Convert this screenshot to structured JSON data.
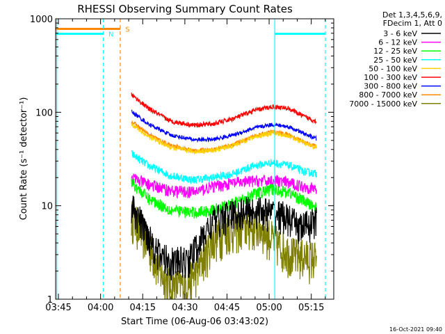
{
  "chart_data": {
    "type": "line",
    "title": "RHESSI Observing Summary Count Rates",
    "xlabel": "Start Time (06-Aug-06 03:43:02)",
    "ylabel": "Count Rate (s⁻¹ detector⁻¹)",
    "timestamp": "16-Oct-2021 09:40",
    "x_range_min": [
      -1,
      98
    ],
    "y_scale": "log",
    "y_range": [
      1,
      1000
    ],
    "x_ticks": [
      {
        "t": 0,
        "label": "03:45"
      },
      {
        "t": 15,
        "label": "04:00"
      },
      {
        "t": 30,
        "label": "04:15"
      },
      {
        "t": 45,
        "label": "04:30"
      },
      {
        "t": 60,
        "label": "04:45"
      },
      {
        "t": 75,
        "label": "05:00"
      },
      {
        "t": 90,
        "label": "05:15"
      }
    ],
    "y_ticks": [
      {
        "v": 1,
        "label": "1"
      },
      {
        "v": 10,
        "label": "10"
      },
      {
        "v": 100,
        "label": "100"
      },
      {
        "v": 1000,
        "label": "1000"
      }
    ],
    "legend_header": [
      "Det 1,3,4,5,6,9,",
      "FDecim 1, Att 0"
    ],
    "series": [
      {
        "name": "3 - 6 keV",
        "color": "#000000",
        "noise": 0.4,
        "points": [
          [
            26,
            10
          ],
          [
            32,
            5
          ],
          [
            36,
            3
          ],
          [
            40,
            2.6
          ],
          [
            46,
            2.6
          ],
          [
            50,
            4
          ],
          [
            55,
            7
          ],
          [
            60,
            8
          ],
          [
            66,
            9
          ],
          [
            72,
            9
          ],
          [
            80,
            8
          ],
          [
            86,
            6
          ],
          [
            92,
            7
          ]
        ]
      },
      {
        "name": "6 - 12 keV",
        "color": "#ff00ff",
        "noise": 0.15,
        "points": [
          [
            26,
            20
          ],
          [
            32,
            17
          ],
          [
            40,
            14.5
          ],
          [
            48,
            14
          ],
          [
            55,
            16
          ],
          [
            62,
            17.5
          ],
          [
            70,
            18.5
          ],
          [
            78,
            18.5
          ],
          [
            86,
            16.5
          ],
          [
            92,
            15
          ]
        ]
      },
      {
        "name": "12 - 25 keV",
        "color": "#00ff00",
        "noise": 0.15,
        "points": [
          [
            26,
            18
          ],
          [
            32,
            12
          ],
          [
            40,
            9
          ],
          [
            48,
            8.5
          ],
          [
            55,
            9
          ],
          [
            62,
            10.5
          ],
          [
            70,
            13.5
          ],
          [
            76,
            15
          ],
          [
            82,
            14
          ],
          [
            88,
            11
          ],
          [
            92,
            9.5
          ]
        ]
      },
      {
        "name": "25 - 50 keV",
        "color": "#00ffff",
        "noise": 0.1,
        "points": [
          [
            26,
            36
          ],
          [
            32,
            27
          ],
          [
            40,
            21
          ],
          [
            48,
            19
          ],
          [
            55,
            20
          ],
          [
            62,
            22
          ],
          [
            70,
            27
          ],
          [
            76,
            29
          ],
          [
            82,
            27
          ],
          [
            88,
            23
          ],
          [
            92,
            22
          ]
        ]
      },
      {
        "name": "50 - 100 keV",
        "color": "#ffd000",
        "noise": 0.06,
        "points": [
          [
            26,
            75
          ],
          [
            32,
            55
          ],
          [
            40,
            42
          ],
          [
            48,
            38
          ],
          [
            55,
            39
          ],
          [
            62,
            44
          ],
          [
            70,
            55
          ],
          [
            76,
            60
          ],
          [
            82,
            56
          ],
          [
            88,
            46
          ],
          [
            92,
            42
          ]
        ]
      },
      {
        "name": "100 - 300 keV",
        "color": "#ff0000",
        "noise": 0.06,
        "points": [
          [
            26,
            155
          ],
          [
            32,
            110
          ],
          [
            40,
            80
          ],
          [
            48,
            73
          ],
          [
            55,
            75
          ],
          [
            62,
            85
          ],
          [
            70,
            105
          ],
          [
            76,
            115
          ],
          [
            82,
            110
          ],
          [
            88,
            88
          ],
          [
            92,
            80
          ]
        ]
      },
      {
        "name": "300 - 800 keV",
        "color": "#0000ff",
        "noise": 0.05,
        "points": [
          [
            26,
            102
          ],
          [
            32,
            75
          ],
          [
            40,
            57
          ],
          [
            48,
            51
          ],
          [
            55,
            51
          ],
          [
            62,
            57
          ],
          [
            70,
            68
          ],
          [
            76,
            74
          ],
          [
            82,
            70
          ],
          [
            88,
            58
          ],
          [
            92,
            52
          ]
        ]
      },
      {
        "name": "800 - 7000 keV",
        "color": "#ff8800",
        "noise": 0.05,
        "points": [
          [
            26,
            80
          ],
          [
            32,
            58
          ],
          [
            40,
            44
          ],
          [
            48,
            39
          ],
          [
            55,
            40
          ],
          [
            62,
            45
          ],
          [
            70,
            56
          ],
          [
            76,
            62
          ],
          [
            82,
            58
          ],
          [
            88,
            47
          ],
          [
            92,
            43
          ]
        ]
      },
      {
        "name": "7000 - 15000 keV",
        "color": "#808000",
        "noise": 0.5,
        "points": [
          [
            26,
            8
          ],
          [
            32,
            4
          ],
          [
            36,
            2
          ],
          [
            40,
            1.4
          ],
          [
            46,
            1.5
          ],
          [
            50,
            2.2
          ],
          [
            55,
            4.5
          ],
          [
            60,
            5.5
          ],
          [
            66,
            6
          ],
          [
            72,
            6
          ],
          [
            78,
            4
          ],
          [
            84,
            3
          ],
          [
            92,
            2.8
          ]
        ]
      }
    ],
    "markers": [
      {
        "kind": "bar",
        "color": "#ff8800",
        "t1": -1,
        "t2": 22,
        "v": 780,
        "label": "S",
        "label_t": 23.8
      },
      {
        "kind": "bar",
        "color": "#00ffff",
        "t1": -1,
        "t2": 16,
        "v": 690,
        "label": "N",
        "label_t": 17.8
      },
      {
        "kind": "bar",
        "color": "#00ffff",
        "t1": 77,
        "t2": 95,
        "v": 690
      },
      {
        "kind": "vline",
        "color": "#00ffff",
        "dashed": false,
        "t": -0.6
      },
      {
        "kind": "vline",
        "color": "#00ffff",
        "dashed": true,
        "t": 16
      },
      {
        "kind": "vline",
        "color": "#ff8800",
        "dashed": true,
        "t": 22
      },
      {
        "kind": "vline",
        "color": "#00ffff",
        "dashed": false,
        "t": 77
      },
      {
        "kind": "vline",
        "color": "#00ffff",
        "dashed": true,
        "t": 95
      }
    ]
  }
}
